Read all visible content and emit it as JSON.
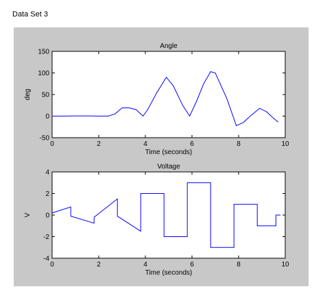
{
  "page": {
    "title": "Data Set 3"
  },
  "chart_data": [
    {
      "type": "line",
      "title": "Angle",
      "xlabel": "Time (seconds)",
      "ylabel": "deg",
      "xlim": [
        0,
        10
      ],
      "ylim": [
        -50,
        150
      ],
      "xticks": [
        0,
        2,
        4,
        6,
        8,
        10
      ],
      "yticks": [
        -50,
        0,
        50,
        100,
        150
      ],
      "grid": false,
      "line_color": "#0000ff",
      "series": [
        {
          "x": [
            0,
            0.5,
            1,
            1.5,
            2,
            2.4,
            2.7,
            3.0,
            3.3,
            3.6,
            3.9,
            4.1,
            4.5,
            4.9,
            5.2,
            5.6,
            5.9,
            6.2,
            6.5,
            6.8,
            7.0,
            7.5,
            7.9,
            8.2,
            8.5,
            8.9,
            9.2,
            9.5,
            9.7
          ],
          "y": [
            0,
            0,
            0.5,
            0.5,
            0,
            0,
            5,
            19,
            19,
            15,
            0,
            15,
            55,
            90,
            70,
            25,
            0,
            35,
            75,
            103,
            100,
            40,
            -22,
            -15,
            0,
            18,
            10,
            -5,
            -14
          ]
        }
      ]
    },
    {
      "type": "line",
      "title": "Voltage",
      "xlabel": "Time (seconds)",
      "ylabel": "V",
      "xlim": [
        0,
        10
      ],
      "ylim": [
        -4,
        4
      ],
      "xticks": [
        0,
        2,
        4,
        6,
        8,
        10
      ],
      "yticks": [
        -4,
        -2,
        0,
        2,
        4
      ],
      "grid": false,
      "line_color": "#0000ff",
      "series": [
        {
          "x": [
            0,
            0.8,
            0.8,
            1.8,
            1.8,
            2.8,
            2.8,
            3.8,
            3.8,
            4.8,
            4.8,
            5.8,
            5.8,
            6.8,
            6.8,
            7.8,
            7.8,
            8.8,
            8.8,
            9.6,
            9.6,
            9.8
          ],
          "y": [
            0.2,
            0.75,
            -0.1,
            -0.75,
            -0.2,
            1.5,
            -0.1,
            -1.5,
            2.0,
            2.0,
            -2.0,
            -2.0,
            3.0,
            3.0,
            -3.0,
            -3.0,
            1.0,
            1.0,
            -1.0,
            -1.0,
            0,
            0
          ]
        }
      ]
    }
  ]
}
